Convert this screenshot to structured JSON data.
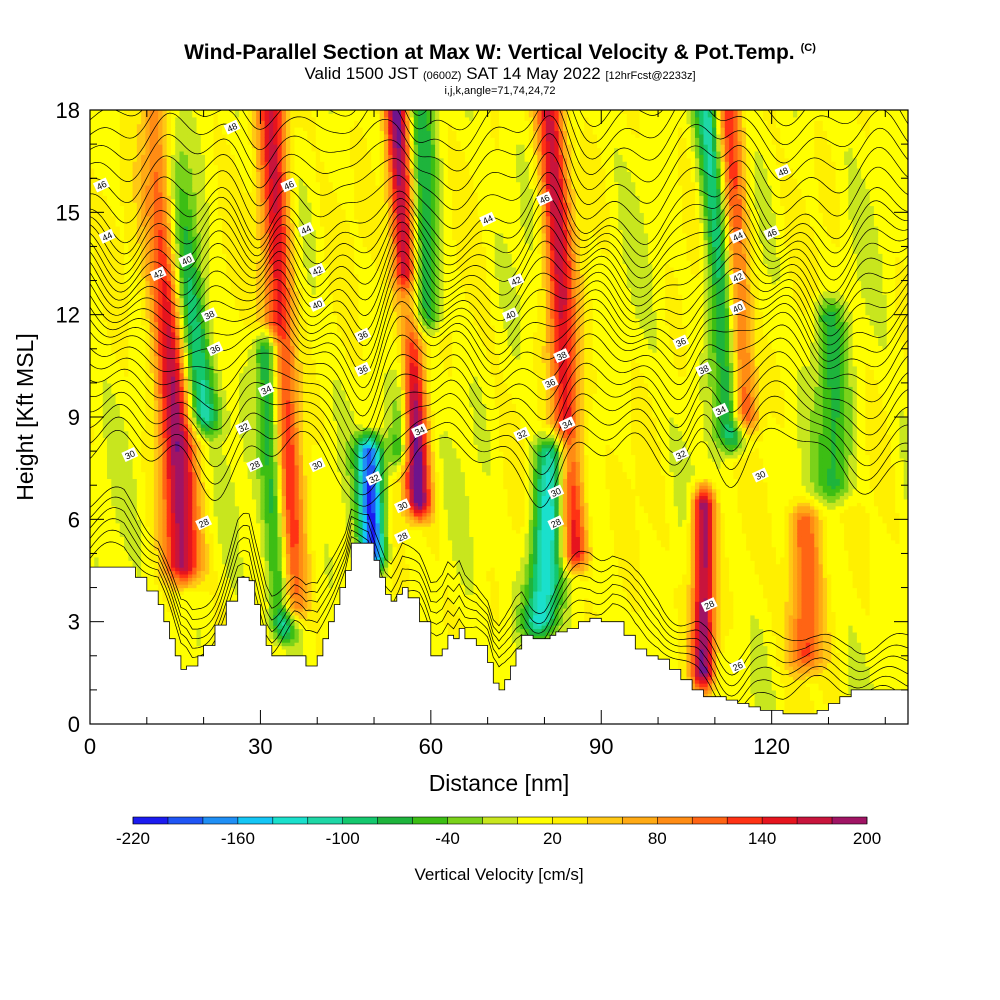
{
  "header": {
    "title": "Wind-Parallel Section at Max W: Vertical Velocity & Pot.Temp.",
    "title_tag": "(C)",
    "valid_prefix": "Valid 1500 JST",
    "valid_utc": "(0600Z)",
    "valid_date": "SAT 14 May 2022",
    "forecast_info": "[12hrFcst@2233z]",
    "indices": "i,j,k,angle=71,74,24,72"
  },
  "chart_data": {
    "type": "heatmap",
    "title": "Wind-Parallel Section at Max W: Vertical Velocity & Pot.Temp.",
    "xlabel": "Distance [nm]",
    "ylabel": "Height [Kft MSL]",
    "xlim": [
      0,
      144
    ],
    "ylim": [
      0,
      18
    ],
    "x_ticks": [
      0,
      30,
      60,
      90,
      120
    ],
    "x_tick_labels": [
      "0",
      "30",
      "60",
      "90",
      "120"
    ],
    "y_ticks": [
      0,
      3,
      6,
      9,
      12,
      15,
      18
    ],
    "y_tick_labels": [
      "0",
      "3",
      "6",
      "9",
      "12",
      "15",
      "18"
    ],
    "x_minor_step": 10,
    "y_minor_step": 1,
    "colorbar": {
      "label": "Vertical Velocity [cm/s]",
      "boundaries": [
        -220,
        -200,
        -180,
        -160,
        -140,
        -120,
        -100,
        -80,
        -60,
        -40,
        -20,
        0,
        20,
        40,
        60,
        80,
        100,
        120,
        140,
        160,
        180,
        200
      ],
      "tick_values": [
        -220,
        -160,
        -100,
        -40,
        20,
        80,
        140,
        200
      ],
      "tick_labels": [
        "-220",
        "-160",
        "-100",
        "-40",
        "20",
        "80",
        "140",
        "200"
      ],
      "colors": [
        "#1b1bf0",
        "#1f55f5",
        "#1f8ff5",
        "#14c6f5",
        "#1ae0cc",
        "#1ed7a6",
        "#14c86e",
        "#1eb43c",
        "#3cbe14",
        "#7ad21a",
        "#c8e61e",
        "#ffff00",
        "#fff000",
        "#ffc814",
        "#ffaa14",
        "#ff8c14",
        "#ff6414",
        "#ff3214",
        "#e6141e",
        "#c8143c",
        "#a01464",
        "#6e148c"
      ]
    },
    "updrafts": [
      {
        "x_center": 15,
        "width": 3.0,
        "z_bottom": 4.6,
        "z_top": 18,
        "tilt": -3,
        "value": 170
      },
      {
        "x_center": 34,
        "width": 2.6,
        "z_bottom": 3.5,
        "z_top": 18,
        "tilt": -2,
        "value": 150
      },
      {
        "x_center": 57,
        "width": 2.2,
        "z_bottom": 6.5,
        "z_top": 18,
        "tilt": -3,
        "value": 195
      },
      {
        "x_center": 84,
        "width": 2.5,
        "z_bottom": 5.0,
        "z_top": 18,
        "tilt": -3,
        "value": 150
      },
      {
        "x_center": 108,
        "width": 2.0,
        "z_bottom": 1.5,
        "z_top": 6.5,
        "tilt": 0,
        "value": 185
      },
      {
        "x_center": 115,
        "width": 2.5,
        "z_bottom": 9.0,
        "z_top": 18,
        "tilt": -3,
        "value": 140
      },
      {
        "x_center": 126,
        "width": 3.0,
        "z_bottom": 2.0,
        "z_top": 6.0,
        "tilt": 0,
        "value": 110
      }
    ],
    "downdrafts": [
      {
        "x_center": 20,
        "width": 3.0,
        "z_bottom": 9.0,
        "z_top": 18,
        "tilt": -7,
        "value": -120
      },
      {
        "x_center": 32,
        "width": 2.2,
        "z_bottom": 3.0,
        "z_top": 11,
        "tilt": -3,
        "value": -150
      },
      {
        "x_center": 49,
        "width": 2.2,
        "z_bottom": 5.0,
        "z_top": 8.0,
        "tilt": -2,
        "value": -210
      },
      {
        "x_center": 55,
        "width": 2.0,
        "z_bottom": 8.0,
        "z_top": 12.5,
        "tilt": 2,
        "value": -100
      },
      {
        "x_center": 60,
        "width": 2.5,
        "z_bottom": 12,
        "z_top": 18,
        "tilt": -2,
        "value": -90
      },
      {
        "x_center": 82,
        "width": 3.0,
        "z_bottom": 3.0,
        "z_top": 8.0,
        "tilt": 4,
        "value": -150
      },
      {
        "x_center": 113,
        "width": 2.5,
        "z_bottom": 8.5,
        "z_top": 18,
        "tilt": -4,
        "value": -140
      },
      {
        "x_center": 131,
        "width": 3.0,
        "z_bottom": 7.0,
        "z_top": 12,
        "tilt": -3,
        "value": -80
      }
    ],
    "terrain": {
      "x": [
        0,
        6,
        8,
        10,
        12,
        13,
        14,
        15,
        16,
        17,
        18,
        19,
        20,
        22,
        24,
        26,
        27,
        28,
        29,
        30,
        31,
        32,
        34,
        36,
        38,
        40,
        41,
        42,
        43,
        44,
        45,
        46,
        47,
        48,
        49,
        50,
        51,
        52,
        53,
        54,
        55,
        56,
        58,
        60,
        61,
        62,
        63,
        64,
        65,
        66,
        68,
        70,
        71,
        72,
        73,
        74,
        75,
        76,
        78,
        80,
        81,
        82,
        84,
        86,
        88,
        90,
        92,
        94,
        96,
        98,
        100,
        102,
        104,
        106,
        108,
        110,
        112,
        114,
        116,
        118,
        120,
        122,
        124,
        126,
        128,
        130,
        132,
        134,
        136,
        138,
        140,
        142,
        144
      ],
      "z": [
        4.6,
        4.6,
        4.3,
        3.9,
        3.5,
        3.0,
        2.5,
        2.0,
        1.6,
        1.7,
        1.7,
        2.0,
        2.3,
        2.9,
        3.6,
        4.3,
        4.3,
        4.2,
        3.5,
        2.9,
        2.3,
        2.0,
        2.0,
        2.0,
        1.7,
        2.0,
        2.5,
        3.0,
        3.5,
        4.0,
        4.5,
        5.3,
        5.3,
        5.3,
        5.3,
        4.8,
        4.3,
        3.8,
        3.6,
        3.8,
        4.0,
        3.7,
        3.0,
        2.0,
        2.0,
        2.2,
        2.6,
        2.5,
        2.8,
        2.5,
        2.3,
        1.8,
        1.2,
        1.0,
        1.3,
        1.7,
        2.2,
        2.6,
        2.5,
        2.5,
        2.6,
        2.7,
        2.8,
        3.0,
        3.1,
        3.0,
        3.0,
        2.6,
        2.2,
        2.0,
        1.9,
        1.6,
        1.3,
        1.0,
        0.8,
        0.8,
        0.7,
        0.6,
        0.5,
        0.4,
        0.4,
        0.3,
        0.3,
        0.3,
        0.4,
        0.6,
        0.8,
        1.0,
        1.0,
        1.0,
        1.0,
        1.0,
        1.0
      ]
    },
    "theta_levels_start": 26,
    "theta_levels_step": 2,
    "contour_labels": [
      {
        "x": 25,
        "z": 17.5,
        "text": "48"
      },
      {
        "x": 2,
        "z": 15.8,
        "text": "46"
      },
      {
        "x": 3,
        "z": 14.3,
        "text": "44"
      },
      {
        "x": 12,
        "z": 13.2,
        "text": "42"
      },
      {
        "x": 17,
        "z": 13.6,
        "text": "40"
      },
      {
        "x": 35,
        "z": 15.8,
        "text": "46"
      },
      {
        "x": 38,
        "z": 14.5,
        "text": "44"
      },
      {
        "x": 40,
        "z": 13.3,
        "text": "42"
      },
      {
        "x": 40,
        "z": 12.3,
        "text": "40"
      },
      {
        "x": 21,
        "z": 12.0,
        "text": "38"
      },
      {
        "x": 22,
        "z": 11.0,
        "text": "36"
      },
      {
        "x": 48,
        "z": 11.4,
        "text": "36"
      },
      {
        "x": 48,
        "z": 10.4,
        "text": "36"
      },
      {
        "x": 31,
        "z": 9.8,
        "text": "34"
      },
      {
        "x": 27,
        "z": 8.7,
        "text": "32"
      },
      {
        "x": 29,
        "z": 7.6,
        "text": "28"
      },
      {
        "x": 40,
        "z": 7.6,
        "text": "30"
      },
      {
        "x": 7,
        "z": 7.9,
        "text": "30"
      },
      {
        "x": 20,
        "z": 5.9,
        "text": "28"
      },
      {
        "x": 50,
        "z": 7.2,
        "text": "32"
      },
      {
        "x": 55,
        "z": 6.4,
        "text": "30"
      },
      {
        "x": 55,
        "z": 5.5,
        "text": "28"
      },
      {
        "x": 58,
        "z": 8.6,
        "text": "34"
      },
      {
        "x": 70,
        "z": 14.8,
        "text": "44"
      },
      {
        "x": 75,
        "z": 13.0,
        "text": "42"
      },
      {
        "x": 74,
        "z": 12.0,
        "text": "40"
      },
      {
        "x": 80,
        "z": 15.4,
        "text": "46"
      },
      {
        "x": 83,
        "z": 10.8,
        "text": "38"
      },
      {
        "x": 81,
        "z": 10.0,
        "text": "36"
      },
      {
        "x": 84,
        "z": 8.8,
        "text": "34"
      },
      {
        "x": 76,
        "z": 8.5,
        "text": "32"
      },
      {
        "x": 82,
        "z": 6.8,
        "text": "30"
      },
      {
        "x": 82,
        "z": 5.9,
        "text": "28"
      },
      {
        "x": 114,
        "z": 14.3,
        "text": "44"
      },
      {
        "x": 120,
        "z": 14.4,
        "text": "46"
      },
      {
        "x": 114,
        "z": 13.1,
        "text": "42"
      },
      {
        "x": 114,
        "z": 12.2,
        "text": "40"
      },
      {
        "x": 104,
        "z": 11.2,
        "text": "36"
      },
      {
        "x": 108,
        "z": 10.4,
        "text": "38"
      },
      {
        "x": 111,
        "z": 9.2,
        "text": "34"
      },
      {
        "x": 104,
        "z": 7.9,
        "text": "32"
      },
      {
        "x": 118,
        "z": 7.3,
        "text": "30"
      },
      {
        "x": 109,
        "z": 3.5,
        "text": "28"
      },
      {
        "x": 114,
        "z": 1.7,
        "text": "26"
      },
      {
        "x": 122,
        "z": 16.2,
        "text": "48"
      }
    ]
  }
}
